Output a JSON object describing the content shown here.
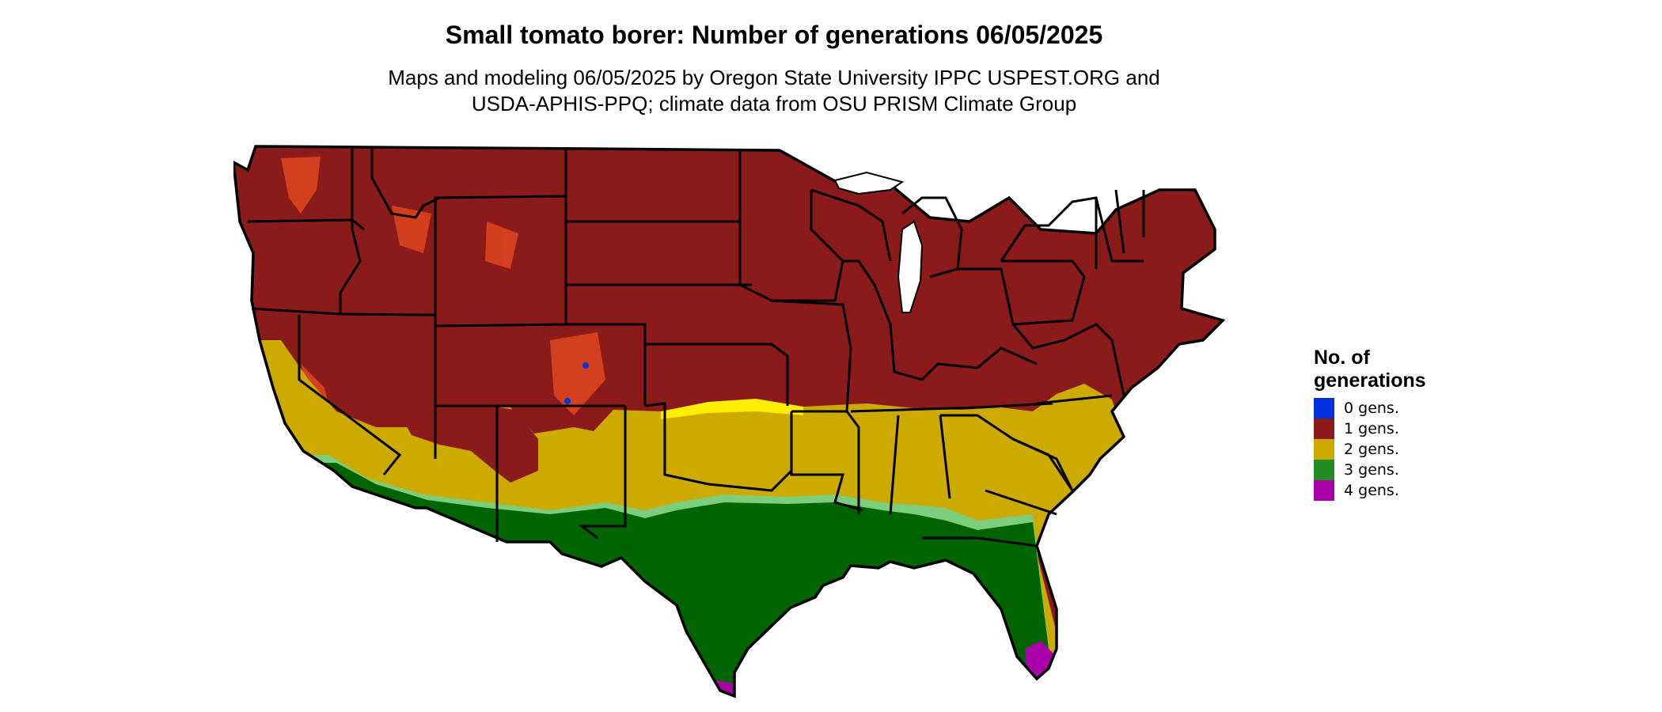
{
  "title": "Small tomato borer: Number of generations 06/05/2025",
  "subtitle": {
    "line1": "Maps and modeling 06/05/2025 by Oregon State University IPPC USPEST.ORG and",
    "line2": "USDA-APHIS-PPQ; climate data from OSU PRISM Climate Group"
  },
  "legend": {
    "title_line1": "No. of",
    "title_line2": "generations",
    "items": [
      {
        "label": "0 gens.",
        "color": "#0033dd"
      },
      {
        "label": "1 gens.",
        "color": "#8b1a1a"
      },
      {
        "label": "2 gens.",
        "color": "#ccaa00"
      },
      {
        "label": "3 gens.",
        "color": "#228b22"
      },
      {
        "label": "4 gens.",
        "color": "#aa00aa"
      }
    ]
  },
  "map": {
    "region": "contiguous-united-states",
    "zone_colors": {
      "gen1": "#8b1a1a",
      "gen1_highland": "#e0461e",
      "gen2": "#ccaa00",
      "gen2_border": "#ffee00",
      "gen3": "#006400",
      "gen3_light": "#7ccd7c",
      "gen4": "#aa00aa",
      "outline": "#000000"
    }
  }
}
